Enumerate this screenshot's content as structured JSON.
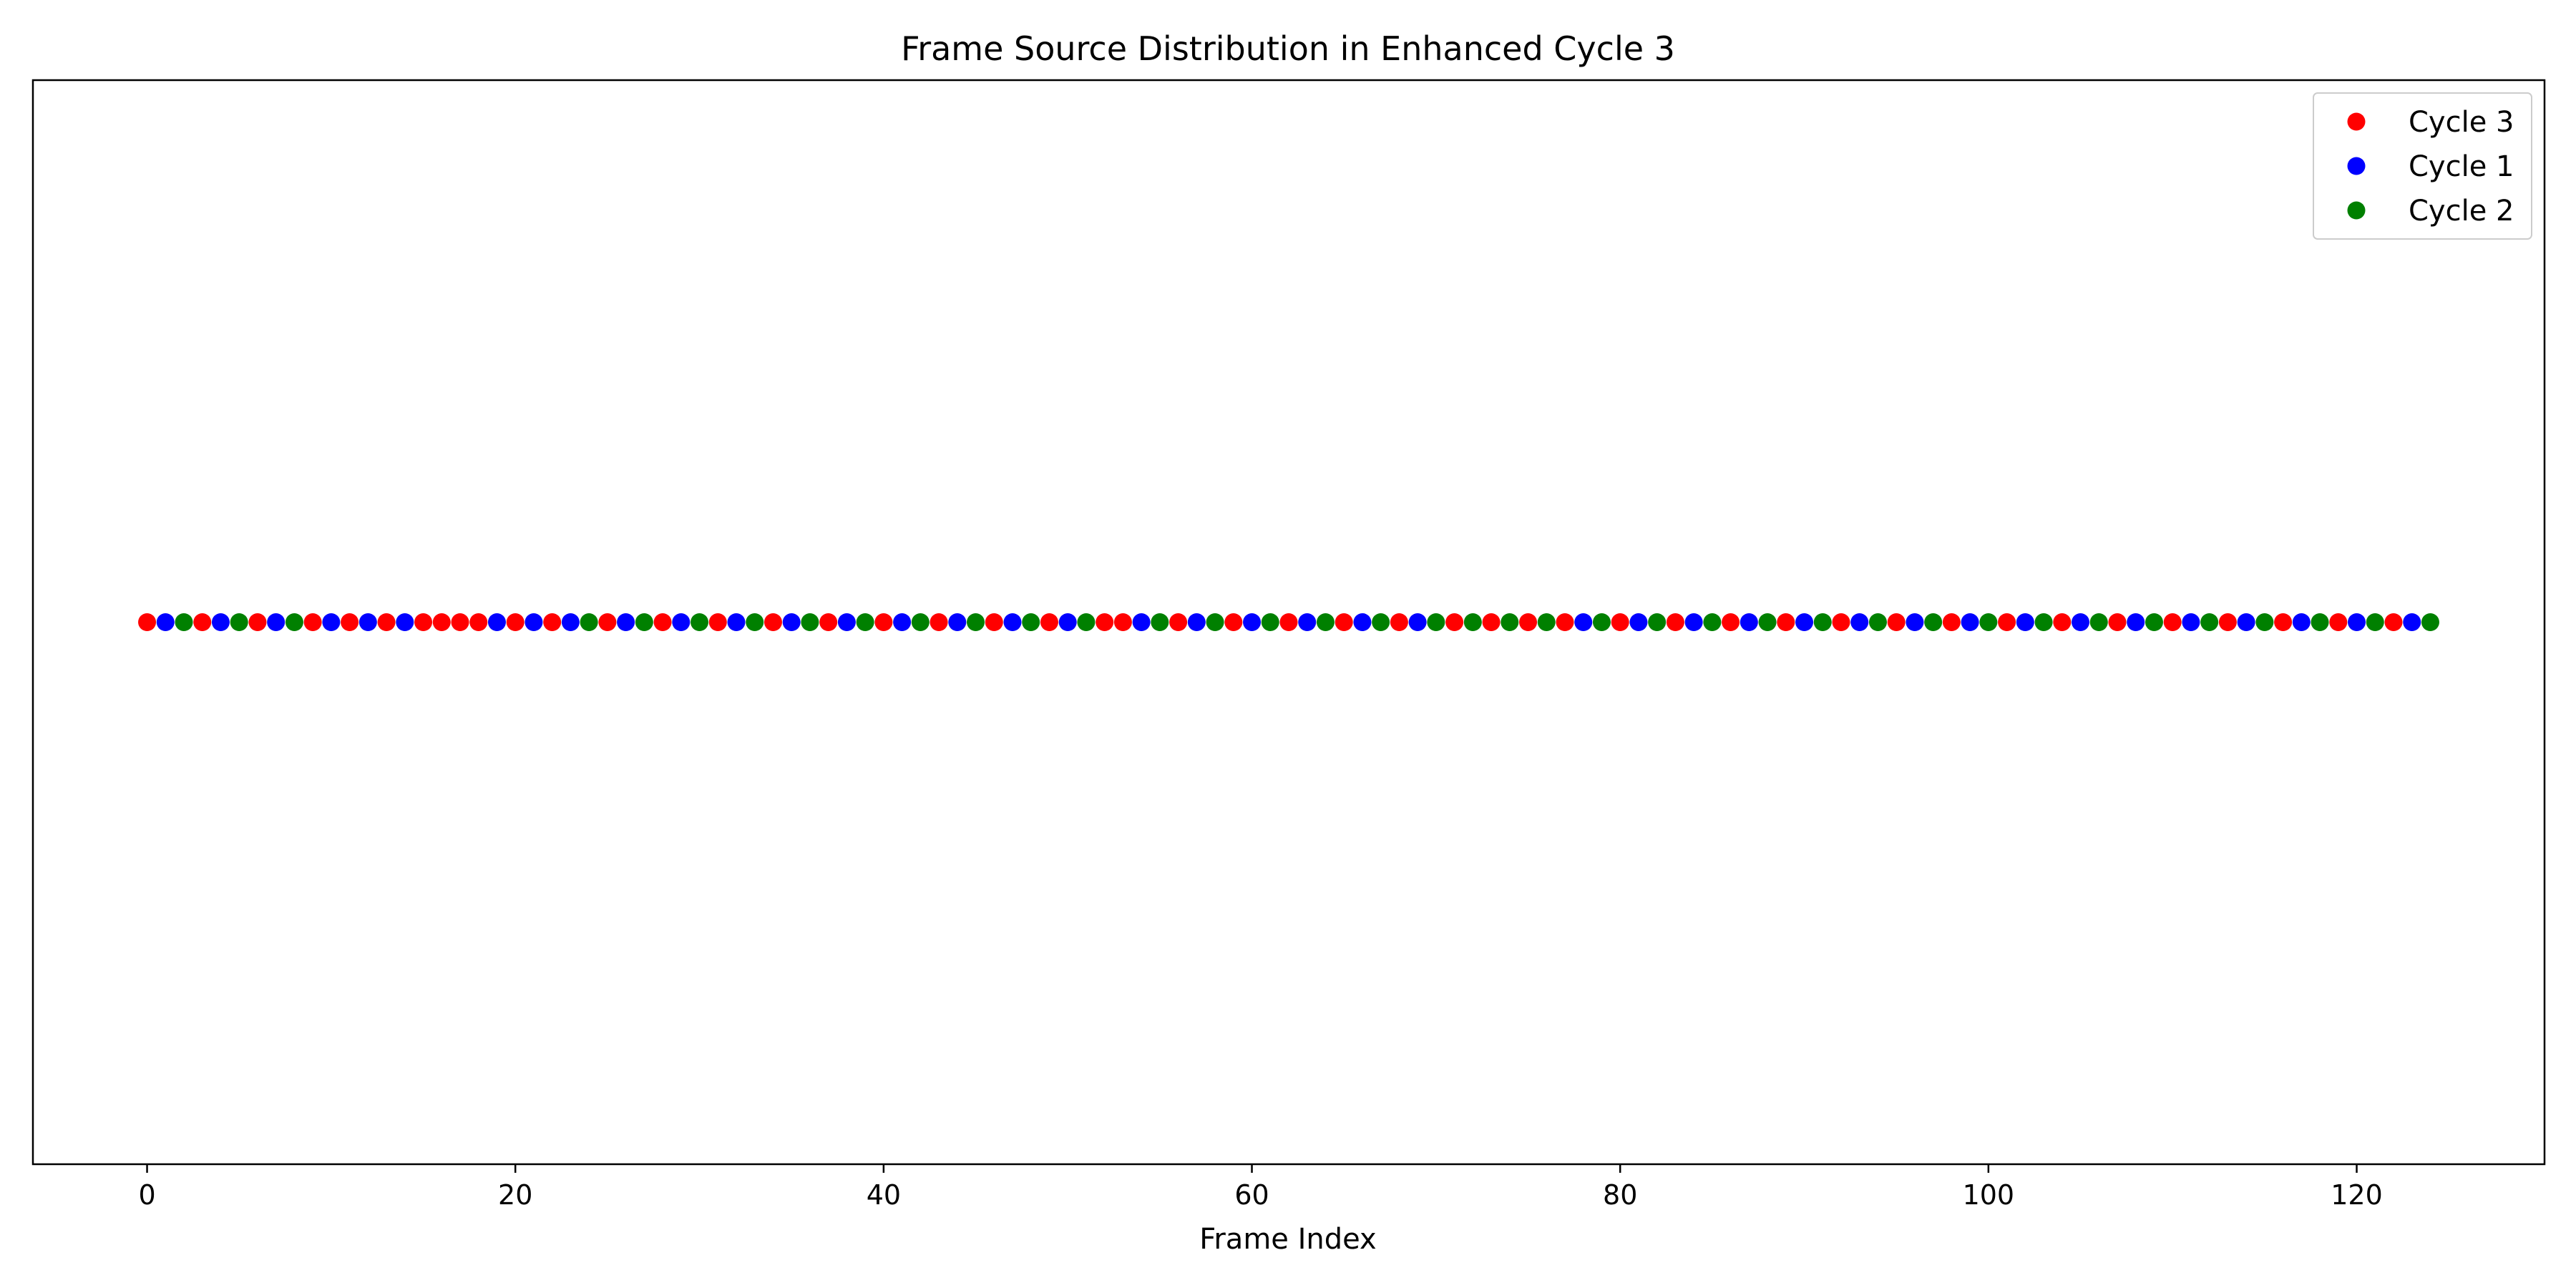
{
  "chart_data": {
    "type": "scatter",
    "title": "Frame Source Distribution in Enhanced Cycle 3",
    "xlabel": "Frame Index",
    "ylabel": "",
    "xlim": [
      -6.2,
      130.2
    ],
    "ylim": [
      -0.055,
      0.055
    ],
    "xticks": [
      0,
      20,
      40,
      60,
      80,
      100,
      120
    ],
    "yticks": [],
    "grid": false,
    "legend_position": "top-right",
    "series": [
      {
        "name": "Cycle 3",
        "color": "#ff0000",
        "x": [
          0,
          3,
          6,
          9,
          11,
          13,
          15,
          16,
          17,
          18,
          20,
          22,
          25,
          28,
          31,
          34,
          37,
          40,
          43,
          46,
          49,
          52,
          53,
          56,
          59,
          62,
          65,
          68,
          71,
          73,
          75,
          77,
          80,
          83,
          86,
          89,
          92,
          95,
          98,
          101,
          104,
          107,
          110,
          113,
          116,
          119,
          122
        ],
        "y": 0
      },
      {
        "name": "Cycle 1",
        "color": "#0000ff",
        "x": [
          1,
          4,
          7,
          10,
          12,
          14,
          19,
          21,
          23,
          26,
          29,
          32,
          35,
          38,
          41,
          44,
          47,
          50,
          54,
          57,
          60,
          63,
          66,
          69,
          78,
          81,
          84,
          87,
          90,
          93,
          96,
          99,
          102,
          105,
          108,
          111,
          114,
          117,
          120,
          123
        ],
        "y": 0
      },
      {
        "name": "Cycle 2",
        "color": "#008000",
        "x": [
          2,
          5,
          8,
          24,
          27,
          30,
          33,
          36,
          39,
          42,
          45,
          48,
          51,
          55,
          58,
          61,
          64,
          67,
          70,
          72,
          74,
          76,
          79,
          82,
          85,
          88,
          91,
          94,
          97,
          100,
          103,
          106,
          109,
          112,
          115,
          118,
          121,
          124
        ],
        "y": 0
      }
    ]
  }
}
